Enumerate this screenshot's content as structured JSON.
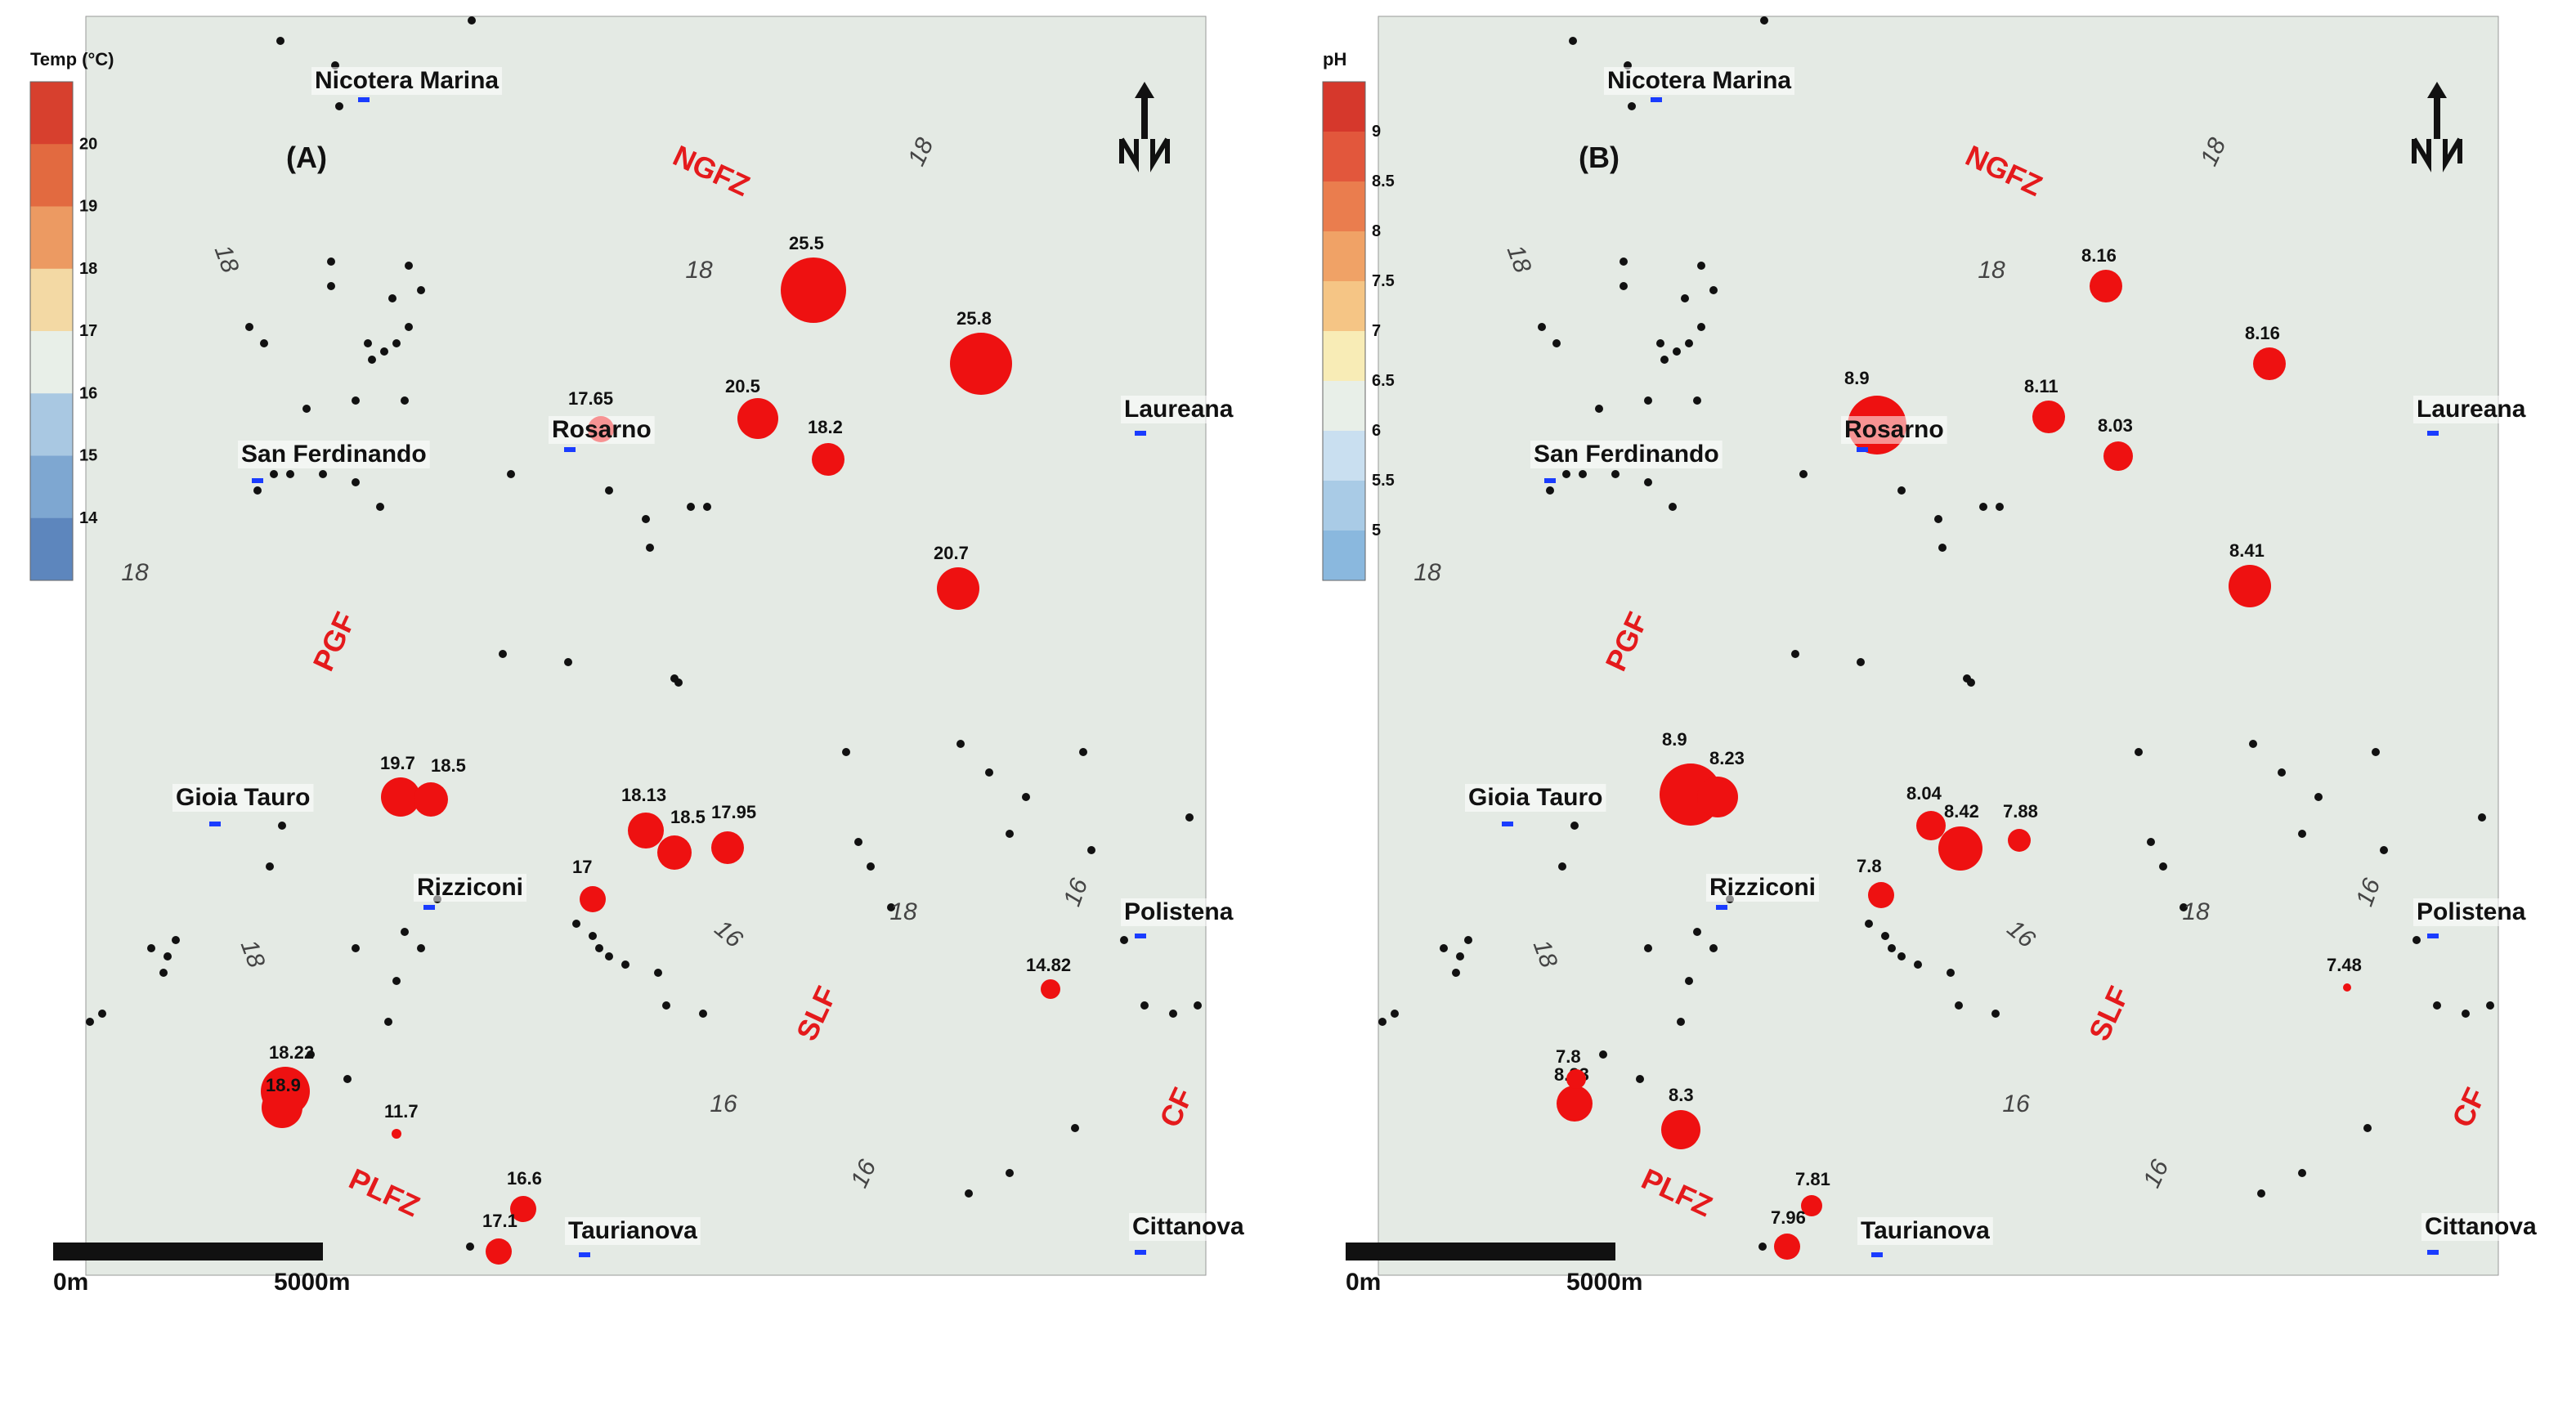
{
  "panels": [
    {
      "id": "A",
      "panel_label": "(A)",
      "legend": {
        "title": "Temp (°C)",
        "ticks": [
          "20",
          "19",
          "18",
          "17",
          "16",
          "15",
          "14"
        ]
      },
      "towns": {
        "nicotera": "Nicotera Marina",
        "sanferdinando": "San Ferdinando",
        "rosarno": "Rosarno",
        "laureana": "Laureana",
        "gioia": "Gioia Tauro",
        "rizziconi": "Rizziconi",
        "polistena": "Polistena",
        "taurianova": "Taurianova",
        "cittanova": "Cittanova"
      },
      "faults": {
        "ngfz": "NGFZ",
        "pgf": "PGF",
        "slf": "SLF",
        "plfz": "PLFZ",
        "cf": "CF"
      },
      "contours": {
        "c1": "18",
        "c2": "18",
        "c3": "18",
        "c4": "18",
        "c5": "16",
        "c6": "16",
        "c7": "16",
        "c8": "16",
        "c9": "18",
        "c10": "18"
      },
      "samples": [
        "25.5",
        "25.8",
        "20.5",
        "18.2",
        "17.65",
        "20.7",
        "19.7",
        "18.5",
        "18.13",
        "18.5",
        "17.95",
        "17",
        "14.82",
        "18.22",
        "18.9",
        "11.7",
        "16.6",
        "17.1"
      ],
      "scalebar": {
        "start": "0m",
        "end": "5000m"
      },
      "x_ticks": [
        "576000",
        "580000",
        "584000",
        "588000",
        "592000",
        "596000"
      ],
      "y_ticks": [
        "4266000",
        "4262000",
        "4258000",
        "4254000",
        "4250000",
        "4246000"
      ],
      "north_icon": "north-arrow-icon"
    },
    {
      "id": "B",
      "panel_label": "(B)",
      "legend": {
        "title": "pH",
        "ticks": [
          "9",
          "8.5",
          "8",
          "7.5",
          "7",
          "6.5",
          "6",
          "5.5",
          "5"
        ]
      },
      "towns": {
        "nicotera": "Nicotera Marina",
        "sanferdinando": "San Ferdinando",
        "rosarno": "Rosarno",
        "laureana": "Laureana",
        "gioia": "Gioia Tauro",
        "rizziconi": "Rizziconi",
        "polistena": "Polistena",
        "taurianova": "Taurianova",
        "cittanova": "Cittanova"
      },
      "faults": {
        "ngfz": "NGFZ",
        "pgf": "PGF",
        "slf": "SLF",
        "plfz": "PLFZ",
        "cf": "CF"
      },
      "contours": {
        "c1": "18",
        "c2": "18",
        "c3": "18",
        "c4": "18",
        "c5": "16",
        "c6": "16",
        "c7": "16",
        "c8": "16",
        "c9": "18",
        "c10": "18"
      },
      "samples": [
        "8.16",
        "8.16",
        "8.11",
        "8.03",
        "8.9",
        "8.41",
        "8.9",
        "8.23",
        "8.04",
        "8.42",
        "7.88",
        "7.8",
        "7.48",
        "8.23",
        "7.8",
        "8.3",
        "7.81",
        "7.96"
      ],
      "scalebar": {
        "start": "0m",
        "end": "5000m"
      },
      "x_ticks": [
        "576000",
        "580000",
        "584000",
        "588000",
        "592000",
        "596000"
      ],
      "y_ticks": [
        "4266000",
        "4262000",
        "4258000",
        "4254000",
        "4250000",
        "4246000"
      ],
      "north_icon": "north-arrow-icon"
    }
  ],
  "colors": {
    "sea": "#ffffff",
    "land_bg": "#e4eae4",
    "warm_18_19": "#f3d9a4",
    "hot_19_20": "#eba87d",
    "hotter_20": "#e0603e",
    "cool_17": "#bcd5e6",
    "cool_16": "#9dbfdd",
    "deep_15": "#5d86bd",
    "fault": "#e31a1c",
    "fault_label": "#e41a1c",
    "sample": "#ee1111"
  }
}
